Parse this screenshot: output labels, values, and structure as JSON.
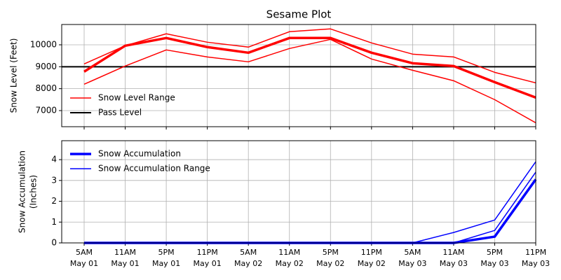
{
  "chart_data": [
    {
      "type": "line",
      "title": "Sesame Plot",
      "ylabel": [
        "Snow Level (Feet)"
      ],
      "ylim": [
        6265,
        10926
      ],
      "yticks": [
        7000,
        8000,
        9000,
        10000
      ],
      "grid": true,
      "legend": "lower left",
      "series": [
        {
          "name": "Snow Level Range",
          "color": "#ff0000",
          "width": 1.5,
          "upper": [
            9128,
            9958,
            10502,
            10118,
            9895,
            10597,
            10725,
            10086,
            9575,
            9447,
            8744,
            8265
          ],
          "lower": [
            8201,
            9032,
            9767,
            9447,
            9224,
            9831,
            10246,
            9351,
            8840,
            8361,
            7498,
            6444
          ]
        },
        {
          "color": "#ff0000",
          "width": 3.5,
          "values": [
            8776,
            9958,
            10310,
            9895,
            9639,
            10310,
            10310,
            9639,
            9160,
            9032,
            8297,
            7594
          ]
        }
      ],
      "hline": {
        "name": "Pass Level",
        "value": 9000,
        "color": "#000000",
        "width": 2
      }
    },
    {
      "type": "line",
      "ylabel": [
        "Snow Accumulation",
        "(Inches)"
      ],
      "ylim": [
        0,
        4.91
      ],
      "yticks": [
        0,
        1,
        2,
        3,
        4
      ],
      "grid": true,
      "legend": "upper left",
      "categories": [
        [
          "5AM",
          "May 01"
        ],
        [
          "11AM",
          "May 01"
        ],
        [
          "5PM",
          "May 01"
        ],
        [
          "11PM",
          "May 01"
        ],
        [
          "5AM",
          "May 02"
        ],
        [
          "11AM",
          "May 02"
        ],
        [
          "5PM",
          "May 02"
        ],
        [
          "11PM",
          "May 02"
        ],
        [
          "5AM",
          "May 03"
        ],
        [
          "11AM",
          "May 03"
        ],
        [
          "5PM",
          "May 03"
        ],
        [
          "11PM",
          "May 03"
        ]
      ],
      "series": [
        {
          "name": "Snow Accumulation",
          "color": "#0000ff",
          "width": 3.5,
          "values": [
            0,
            0,
            0,
            0,
            0,
            0,
            0,
            0,
            0,
            0,
            0.3,
            3.05
          ]
        },
        {
          "name": "Snow Accumulation Range",
          "color": "#0000ff",
          "width": 1.5,
          "upper": [
            0,
            0,
            0,
            0,
            0,
            0,
            0,
            0,
            0,
            0.5,
            1.1,
            3.9
          ],
          "lower": [
            0,
            0,
            0,
            0,
            0,
            0,
            0,
            0,
            0,
            0,
            0.6,
            3.4
          ]
        }
      ]
    }
  ]
}
